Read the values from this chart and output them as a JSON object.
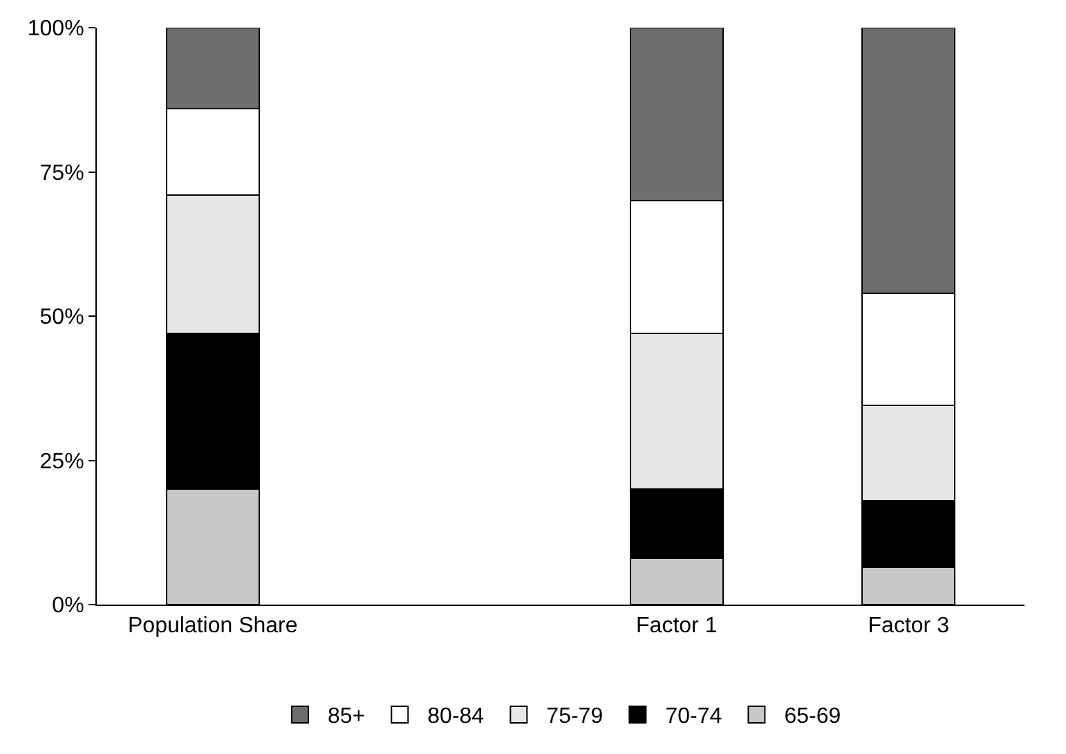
{
  "chart_data": {
    "type": "bar",
    "stacked": true,
    "categories": [
      "Population Share",
      null,
      "Factor 1",
      "Factor 3"
    ],
    "series": [
      {
        "name": "65-69",
        "color": "#c8c8c8",
        "values": [
          20,
          null,
          8,
          6.5
        ]
      },
      {
        "name": "70-74",
        "color": "#000000",
        "values": [
          27,
          null,
          12,
          11.5
        ]
      },
      {
        "name": "75-79",
        "color": "#e6e6e6",
        "values": [
          24,
          null,
          27,
          16.5
        ]
      },
      {
        "name": "80-84",
        "color": "#ffffff",
        "values": [
          15,
          null,
          23,
          19.5
        ]
      },
      {
        "name": "85+",
        "color": "#6e6e6e",
        "values": [
          14,
          null,
          30,
          46
        ]
      }
    ],
    "ylim": [
      0,
      100
    ],
    "yticks": [
      {
        "value": 0,
        "label": "0%"
      },
      {
        "value": 25,
        "label": "25%"
      },
      {
        "value": 50,
        "label": "50%"
      },
      {
        "value": 75,
        "label": "75%"
      },
      {
        "value": 100,
        "label": "100%"
      }
    ],
    "grid": false,
    "legend": "bottom"
  }
}
